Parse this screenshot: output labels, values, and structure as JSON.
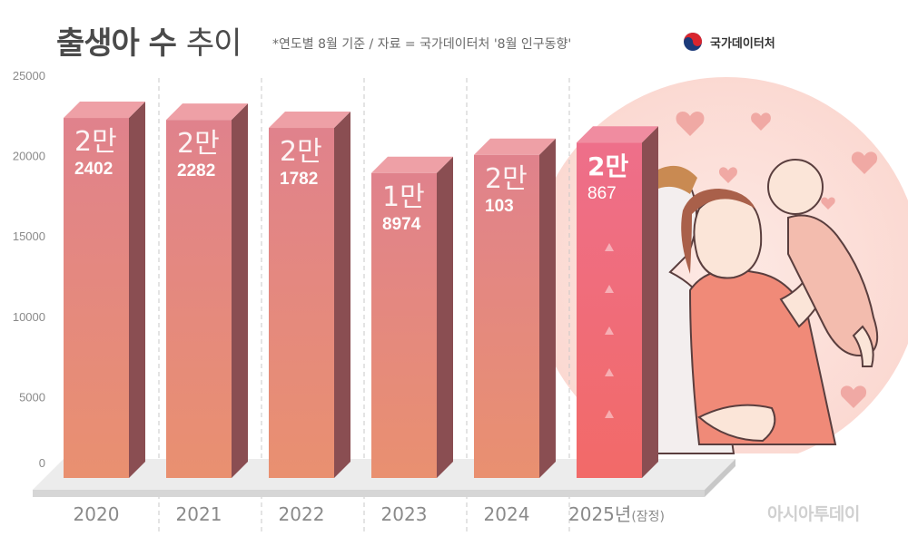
{
  "header": {
    "title_bold": "출생아 수",
    "title_light": "추이",
    "subtitle": "*연도별 8월 기준 / 자료 = 국가데이터처 '8월 인구동향'",
    "source_label": "국가데이터처"
  },
  "watermark": "아시아투데이",
  "colors": {
    "bar_front_top": "#e0828c",
    "bar_front_bottom": "#e99070",
    "bar_side": "#8a4e52",
    "bar_top": "#eea0a6",
    "highlight_front_top": "#ee6f8a",
    "highlight_front_bottom": "#f26a68",
    "base": "#dcdcdc",
    "axis_text": "#8a8a8a",
    "circle_bg": "#fbe1dc"
  },
  "chart_data": {
    "type": "bar",
    "title": "출생아 수 추이",
    "subtitle": "*연도별 8월 기준 / 자료 = 국가데이터처 '8월 인구동향'",
    "categories": [
      "2020",
      "2021",
      "2022",
      "2023",
      "2024",
      "2025년(잠정)"
    ],
    "category_parts": [
      {
        "main": "2020",
        "note": ""
      },
      {
        "main": "2021",
        "note": ""
      },
      {
        "main": "2022",
        "note": ""
      },
      {
        "main": "2023",
        "note": ""
      },
      {
        "main": "2024",
        "note": ""
      },
      {
        "main": "2025년",
        "note": "(잠정)"
      }
    ],
    "values": [
      22402,
      22282,
      21782,
      18974,
      20103,
      20867
    ],
    "labels": [
      {
        "man": "2만",
        "rest": "2402"
      },
      {
        "man": "2만",
        "rest": "2282"
      },
      {
        "man": "2만",
        "rest": "1782"
      },
      {
        "man": "1만",
        "rest": "8974"
      },
      {
        "man": "2만",
        "rest": "103"
      },
      {
        "man": "2만",
        "rest": "867"
      }
    ],
    "highlight_index": 5,
    "ylim": [
      0,
      25000
    ],
    "yticks": [
      "25000",
      "20000",
      "15000",
      "10000",
      "5000",
      "0"
    ],
    "ytick_values": [
      25000,
      20000,
      15000,
      10000,
      5000,
      0
    ],
    "xlabel": "",
    "ylabel": "",
    "grid": false,
    "legend": "none"
  }
}
